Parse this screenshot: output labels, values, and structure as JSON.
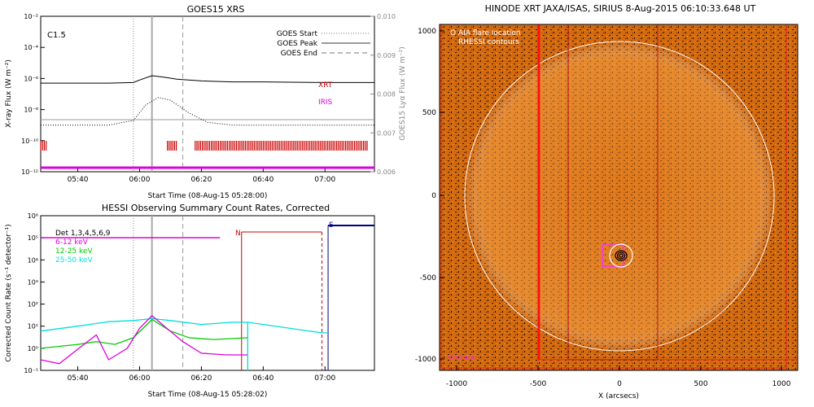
{
  "goes_panel": {
    "title": "GOES15 XRS",
    "xlabel": "Start Time (08-Aug-15 05:28:00)",
    "ylabel_left": "X-ray Flux (W m⁻²)",
    "ylabel_right": "GOES15 Lyα Flux (W m⁻²)",
    "class_label": "C1.5",
    "legend": [
      "GOES Start",
      "GOES Peak",
      "GOES End"
    ],
    "xrt_label": "XRT",
    "iris_label": "IRIS",
    "colors": {
      "xrt": "#cc0000",
      "iris": "#dd00dd",
      "goes_line": "#999999"
    }
  },
  "hessi_panel": {
    "title": "HESSI Observing Summary Count Rates, Corrected",
    "xlabel": "Start Time (08-Aug-15 05:28:02)",
    "ylabel": "Corrected Count Rate (s⁻¹ detector⁻¹)",
    "legend": [
      {
        "label": "Det 1,3,4,5,6,9",
        "color": "#000000"
      },
      {
        "label": "6-12 keV",
        "color": "#dd00dd"
      },
      {
        "label": "12-25 keV",
        "color": "#00cc00"
      },
      {
        "label": "25-50 keV",
        "color": "#00dddd"
      }
    ],
    "night_label": "N",
    "saa_label": "S"
  },
  "image_panel": {
    "title": "HINODE XRT JAXA/ISAS, SIRIUS   8-Aug-2015 06:10:33.648 UT",
    "xlabel": "X (arcsecs)",
    "legend": [
      "O AIA flare location",
      "RHESSI contours"
    ],
    "corner_label": "SDO AIA"
  },
  "chart_data": [
    {
      "type": "line",
      "title": "GOES15 XRS",
      "x_ticks": [
        "05:40",
        "06:00",
        "06:20",
        "06:40",
        "07:00"
      ],
      "x_range": [
        "05:28",
        "07:16"
      ],
      "ylim_left": [
        "1e-12",
        "1e-2"
      ],
      "y_scale": "log",
      "y_ticks_left": [
        "10⁻¹²",
        "10⁻¹⁰",
        "10⁻⁸",
        "10⁻⁶",
        "10⁻⁴",
        "10⁻²"
      ],
      "ylim_right": [
        0.006,
        0.01
      ],
      "y_ticks_right": [
        "0.006",
        "0.007",
        "0.008",
        "0.009",
        "0.010"
      ],
      "markers": {
        "goes_start": "05:58",
        "goes_peak": "06:04",
        "goes_end": "06:14"
      },
      "series": [
        {
          "x": [
            "05:28",
            "05:40",
            "05:50",
            "05:58",
            "06:00",
            "06:04",
            "06:08",
            "06:12",
            "06:20",
            "06:30",
            "06:40",
            "07:00",
            "07:16"
          ],
          "values": [
            "5e-7",
            "5e-7",
            "5e-7",
            "5.5e-7",
            "8e-7",
            "1.5e-6",
            "1.2e-6",
            "9e-7",
            "7e-7",
            "6e-7",
            "6e-7",
            "5.5e-7",
            "5.5e-7"
          ]
        },
        {
          "x": [
            "05:28",
            "05:50",
            "05:58",
            "06:02",
            "06:06",
            "06:10",
            "06:16",
            "06:22",
            "06:30",
            "07:16"
          ],
          "values": [
            "1e-9",
            "1e-9",
            "2e-9",
            "2e-8",
            "6e-8",
            "4e-8",
            "6e-9",
            "1.5e-9",
            "1e-9",
            "1e-9"
          ]
        },
        {
          "name": "XRT",
          "intervals": [
            [
              "05:28",
              "05:30"
            ],
            [
              "06:09",
              "06:12"
            ],
            [
              "06:18",
              "07:14"
            ]
          ]
        },
        {
          "name": "IRIS",
          "intervals": [
            [
              "05:28",
              "07:16"
            ]
          ]
        }
      ]
    },
    {
      "type": "line",
      "title": "HESSI Observing Summary Count Rates, Corrected",
      "x_ticks": [
        "05:40",
        "06:00",
        "06:20",
        "06:40",
        "07:00"
      ],
      "x_range": [
        "05:28",
        "07:16"
      ],
      "y_scale": "log",
      "ylim": [
        "1e-1",
        "1e6"
      ],
      "y_ticks": [
        "10⁻¹",
        "10⁰",
        "10¹",
        "10²",
        "10³",
        "10⁴",
        "10⁵",
        "10⁶"
      ],
      "markers": {
        "goes_start": "05:58",
        "goes_peak": "06:04",
        "goes_end": "06:14",
        "night_start": "06:33",
        "saa_start": "06:59",
        "saa_end": "07:01"
      },
      "series": [
        {
          "name": "6-12 keV",
          "x": [
            "05:28",
            "05:34",
            "05:42",
            "05:46",
            "05:50",
            "05:56",
            "06:00",
            "06:04",
            "06:08",
            "06:14",
            "06:20",
            "06:28",
            "06:35"
          ],
          "values": [
            0.3,
            0.2,
            1.5,
            4,
            0.3,
            1,
            8,
            30,
            10,
            2,
            0.6,
            0.5,
            0.5
          ]
        },
        {
          "name": "12-25 keV",
          "x": [
            "05:28",
            "05:40",
            "05:46",
            "05:52",
            "05:58",
            "06:04",
            "06:10",
            "06:16",
            "06:24",
            "06:35"
          ],
          "values": [
            1,
            1.5,
            2,
            1.5,
            3,
            20,
            6,
            3,
            2.5,
            3
          ]
        },
        {
          "name": "25-50 keV",
          "x": [
            "05:28",
            "05:40",
            "05:50",
            "05:58",
            "06:04",
            "06:10",
            "06:20",
            "06:30",
            "06:35",
            "06:59",
            "07:01"
          ],
          "values": [
            6,
            10,
            16,
            18,
            22,
            18,
            12,
            15,
            15,
            5,
            5
          ]
        },
        {
          "name": "Det 1,3,4,5,6,9",
          "intervals": [
            [
              "05:28",
              "06:26"
            ],
            [
              "07:01",
              "07:16"
            ]
          ]
        }
      ]
    }
  ]
}
